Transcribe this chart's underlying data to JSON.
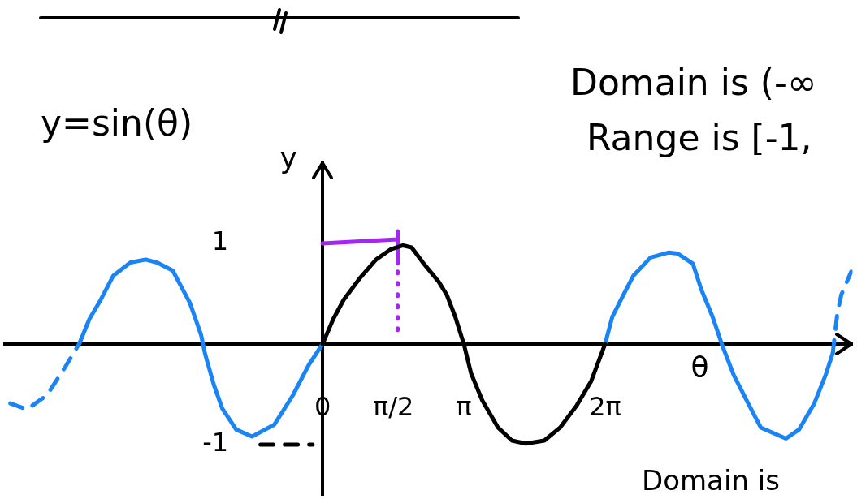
{
  "chart_data": {
    "type": "line",
    "title": "y=sin(θ)",
    "xlabel": "θ",
    "ylabel": "y",
    "annotations": [
      "Domain is (-∞",
      "Range is [-1,",
      "Domain is"
    ],
    "xlim": [
      -7.07,
      11.78
    ],
    "xticks": [
      0,
      {
        "value": 1.571,
        "label": "π/2"
      },
      {
        "value": 3.142,
        "label": "π"
      },
      {
        "value": 6.283,
        "label": "2π"
      }
    ],
    "ylim": [
      -1.5,
      1.8
    ],
    "yticks": [
      -1,
      1
    ],
    "marker": "none",
    "series": [
      {
        "color": "#000000",
        "x": [
          0,
          0.24,
          0.47,
          0.82,
          1.19,
          1.51,
          1.79,
          1.98,
          2.23,
          2.58,
          2.76,
          2.95,
          3.14,
          3.3,
          3.55,
          3.9,
          4.21,
          4.52,
          4.93,
          5.28,
          5.65,
          5.97,
          6.28
        ],
        "values": [
          0,
          0.25,
          0.44,
          0.65,
          0.84,
          0.94,
          0.98,
          0.96,
          0.81,
          0.62,
          0.49,
          0.27,
          0,
          -0.29,
          -0.56,
          -0.83,
          -0.96,
          -0.99,
          -0.96,
          -0.83,
          -0.61,
          -0.37,
          0
        ]
      },
      {
        "color": "#1a84f5",
        "x": [
          -5.4,
          -5.18,
          -4.93,
          -4.65,
          -4.27,
          -3.93,
          -3.68,
          -3.33,
          -3.2,
          -2.95,
          -2.8,
          -2.7,
          -2.61,
          -2.42,
          -2.23,
          -1.92,
          -1.57,
          -1.07,
          -0.66,
          -0.31,
          0
        ],
        "values": [
          0.01,
          0.25,
          0.44,
          0.68,
          0.81,
          0.84,
          0.81,
          0.73,
          0.62,
          0.41,
          0.22,
          0.09,
          -0.1,
          -0.4,
          -0.64,
          -0.85,
          -0.92,
          -0.8,
          -0.51,
          -0.21,
          0
        ]
      },
      {
        "color": "#1a84f5",
        "x": [
          6.28,
          6.44,
          6.69,
          6.91,
          7.29,
          7.7,
          7.89,
          8.23,
          8.42,
          8.67,
          8.89,
          9.14,
          9.46,
          9.74,
          10.3,
          10.59,
          10.93,
          11.18,
          11.34
        ],
        "values": [
          0,
          0.27,
          0.49,
          0.68,
          0.86,
          0.91,
          0.9,
          0.8,
          0.54,
          0.27,
          -0.02,
          -0.31,
          -0.59,
          -0.83,
          -0.94,
          -0.85,
          -0.59,
          -0.31,
          -0.09
        ]
      },
      {
        "color": "#1a84f5",
        "line_style": "dashed",
        "x": [
          -6.94,
          -6.57,
          -6.13,
          -5.72,
          -5.4
        ],
        "values": [
          -0.59,
          -0.65,
          -0.51,
          -0.23,
          0.01
        ]
      },
      {
        "color": "#1a84f5",
        "line_style": "dashed",
        "x": [
          11.34,
          11.44,
          11.53,
          11.75
        ],
        "values": [
          -0.09,
          0.3,
          0.49,
          0.72
        ]
      },
      {
        "color": "#000000",
        "line_style": "dashed",
        "x": [
          -1.38,
          -0.22
        ],
        "values": [
          -1,
          -1
        ]
      },
      {
        "color": "#a526f2",
        "line_style": "dotted",
        "x": [
          1.67,
          1.67
        ],
        "values": [
          0.14,
          0.84
        ]
      },
      {
        "color": "#a526f2",
        "x": [
          1.67,
          1.67,
          1.67,
          0
        ],
        "values": [
          0.8,
          1.12,
          1.04,
          1
        ]
      }
    ]
  }
}
